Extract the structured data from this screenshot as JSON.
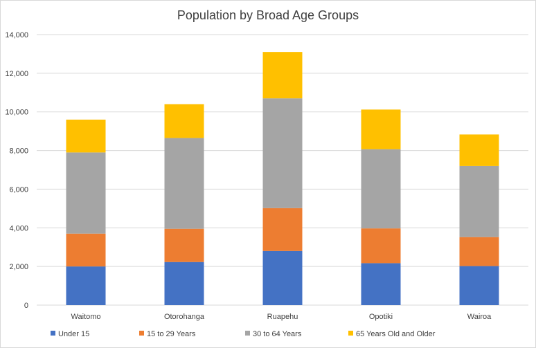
{
  "chart_data": {
    "type": "bar",
    "stacked": true,
    "title": "Population by Broad Age Groups",
    "xlabel": "",
    "ylabel": "",
    "ylim": [
      0,
      14000
    ],
    "y_ticks": [
      0,
      2000,
      4000,
      6000,
      8000,
      10000,
      12000,
      14000
    ],
    "y_tick_labels": [
      "0",
      "2,000",
      "4,000",
      "6,000",
      "8,000",
      "10,000",
      "12,000",
      "14,000"
    ],
    "grid": true,
    "legend_position": "bottom",
    "categories": [
      "Waitomo",
      "Otorohanga",
      "Ruapehu",
      "Opotiki",
      "Wairoa"
    ],
    "series": [
      {
        "name": "Under 15",
        "color": "#4472c4",
        "values": [
          2000,
          2230,
          2800,
          2170,
          2020
        ]
      },
      {
        "name": "15 to 29 Years",
        "color": "#ed7d31",
        "values": [
          1700,
          1720,
          2220,
          1800,
          1500
        ]
      },
      {
        "name": "30 to 64 Years",
        "color": "#a5a5a5",
        "values": [
          4200,
          4700,
          5680,
          4100,
          3680
        ]
      },
      {
        "name": "65 Years Old and Older",
        "color": "#ffc000",
        "values": [
          1700,
          1750,
          2400,
          2050,
          1630
        ]
      }
    ]
  }
}
